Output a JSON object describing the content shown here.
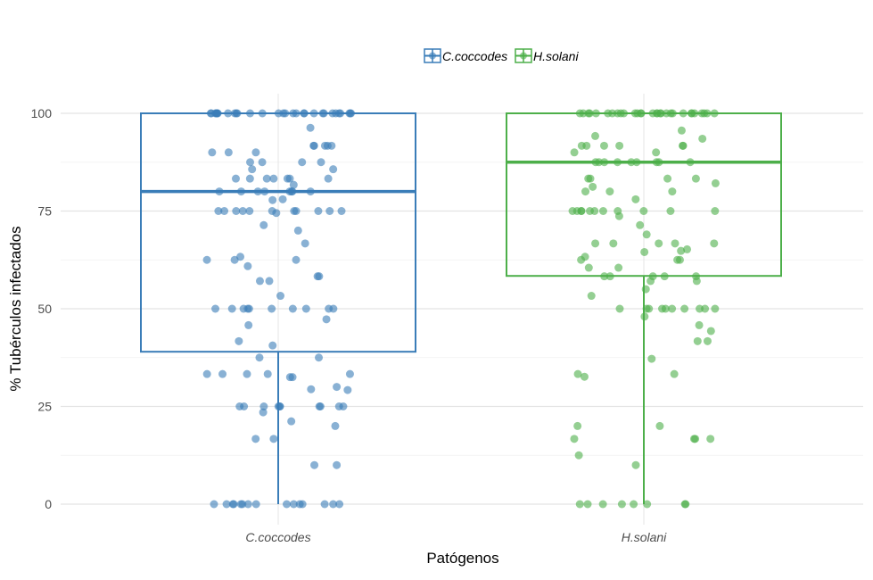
{
  "chart_data": {
    "type": "boxplot",
    "title": "",
    "xlabel": "Patógenos",
    "ylabel": "% Tubérculos infectados",
    "ylim": [
      0,
      100
    ],
    "yticks": [
      0,
      25,
      50,
      75,
      100
    ],
    "grid": true,
    "legend_position": "top",
    "categories": [
      "C.coccodes",
      "H.solani"
    ],
    "series": [
      {
        "name": "C.coccodes",
        "color": "#3a7db8",
        "box": {
          "min": 0,
          "q1": 39,
          "median": 80,
          "q3": 100,
          "max": 100
        },
        "points": [
          100,
          100,
          100,
          100,
          100,
          100,
          100,
          100,
          100,
          100,
          100,
          100,
          100,
          100,
          100,
          100,
          100,
          100,
          100,
          100,
          100,
          100,
          100,
          100,
          100,
          100,
          100,
          100,
          100,
          100,
          96.3,
          91.7,
          91.7,
          91.7,
          91.7,
          91.7,
          90,
          90,
          90,
          87.5,
          87.5,
          87.5,
          87.5,
          85.7,
          85.7,
          83.3,
          83.3,
          83.3,
          83.3,
          83.3,
          83.3,
          83.3,
          81.7,
          80,
          80,
          80,
          80,
          80,
          80,
          80,
          80,
          78,
          77.8,
          75,
          75,
          75,
          75,
          75,
          75,
          75,
          75,
          75,
          75,
          75,
          74.5,
          71.4,
          70,
          66.7,
          63.3,
          62.5,
          62.5,
          62.5,
          60.9,
          58.3,
          58.3,
          57.1,
          57.1,
          53.3,
          50,
          50,
          50,
          50,
          50,
          50,
          50,
          50,
          50,
          50,
          47.3,
          45.8,
          41.7,
          40.6,
          37.5,
          37.5,
          33.3,
          33.3,
          33.3,
          33.3,
          33.3,
          32.5,
          32.5,
          30,
          29.4,
          29.2,
          25,
          25,
          25,
          25,
          25,
          25,
          25,
          25,
          25,
          25,
          23.5,
          21.2,
          20,
          16.7,
          16.7,
          10,
          10,
          0,
          0,
          0,
          0,
          0,
          0,
          0,
          0,
          0,
          0,
          0,
          0,
          0,
          0,
          0
        ]
      },
      {
        "name": "H.solani",
        "color": "#4daf4a",
        "box": {
          "min": 0,
          "q1": 58.4,
          "median": 87.5,
          "q3": 100,
          "max": 100
        },
        "points": [
          100,
          100,
          100,
          100,
          100,
          100,
          100,
          100,
          100,
          100,
          100,
          100,
          100,
          100,
          100,
          100,
          100,
          100,
          100,
          100,
          100,
          100,
          100,
          100,
          100,
          100,
          100,
          100,
          100,
          100,
          95.6,
          94.2,
          93.5,
          91.7,
          91.7,
          91.7,
          91.7,
          91.7,
          91.7,
          90,
          90,
          87.5,
          87.5,
          87.5,
          87.5,
          87.5,
          87.5,
          87.5,
          87.5,
          87.5,
          83.3,
          83.3,
          83.3,
          83.3,
          82.1,
          81.2,
          80,
          80,
          80,
          78,
          75,
          75,
          75,
          75,
          75,
          75,
          75,
          75,
          75,
          75,
          75,
          73.7,
          71.4,
          69,
          66.7,
          66.7,
          66.7,
          66.7,
          66.7,
          65.2,
          64.8,
          64.5,
          63.3,
          62.5,
          62.5,
          62.5,
          60.5,
          60.5,
          58.3,
          58.3,
          58.3,
          58.3,
          58.3,
          57.1,
          57.1,
          55,
          53.3,
          50,
          50,
          50,
          50,
          50,
          50,
          50,
          50,
          50,
          50,
          48,
          45.8,
          44.3,
          41.7,
          41.7,
          37.2,
          33.3,
          33.3,
          32.6,
          20,
          20,
          16.7,
          16.7,
          16.7,
          16.7,
          12.5,
          10,
          0,
          0,
          0,
          0,
          0,
          0,
          0,
          0
        ]
      }
    ]
  }
}
